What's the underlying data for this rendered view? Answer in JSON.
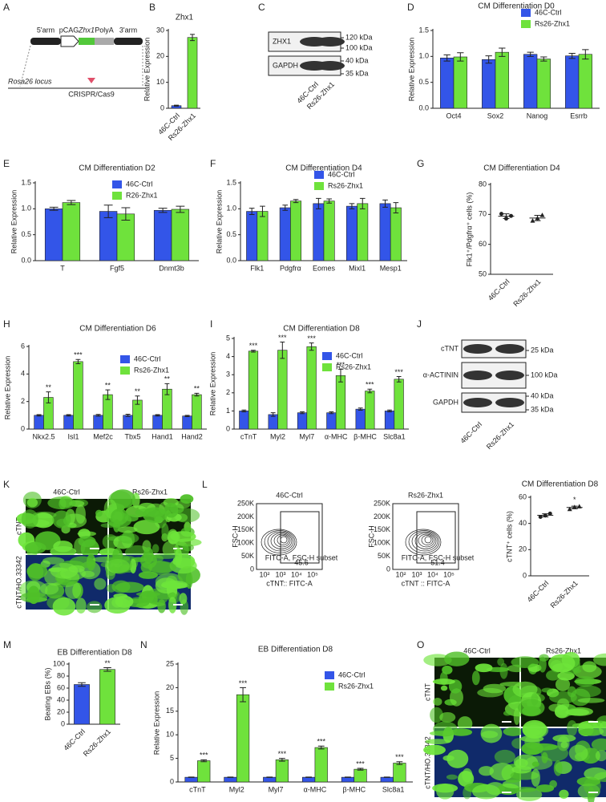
{
  "chart_data": [
    {
      "type": "bar",
      "title": "Zhx1",
      "ylabel": "Relative Expression",
      "categories": [
        "46C-Ctrl",
        "Rs26-Zhx1"
      ],
      "values": [
        1,
        27.3
      ],
      "errors": [
        0.2,
        1.2
      ],
      "colors": [
        "#3355e8",
        "#6fe23c"
      ],
      "ylim": [
        0,
        30
      ],
      "yticks": [
        0,
        10,
        20,
        30
      ]
    },
    {
      "type": "bar",
      "title": "CM Differentiation D0",
      "ylabel": "Relative Expression",
      "categories": [
        "Oct4",
        "Sox2",
        "Nanog",
        "Esrrb"
      ],
      "series": [
        {
          "name": "46C-Ctrl",
          "color": "#3355e8",
          "values": [
            0.97,
            0.94,
            1.04,
            1.01
          ],
          "errors": [
            0.06,
            0.07,
            0.04,
            0.05
          ]
        },
        {
          "name": "Rs26-Zhx1",
          "color": "#6fe23c",
          "values": [
            0.99,
            1.08,
            0.95,
            1.04
          ],
          "errors": [
            0.08,
            0.08,
            0.04,
            0.09
          ]
        }
      ],
      "ylim": [
        0,
        1.5
      ],
      "yticks": [
        {
          "value": 0,
          "label": "0.0"
        },
        0.5,
        {
          "value": 1,
          "label": "1.0"
        },
        1.5
      ],
      "legend": "top-right"
    },
    {
      "type": "bar",
      "title": "CM Differentiation D2",
      "ylabel": "Relative Expression",
      "categories": [
        "T",
        "Fgf5",
        "Dnmt3b"
      ],
      "series": [
        {
          "name": "46C-Ctrl",
          "color": "#3355e8",
          "values": [
            1.0,
            0.95,
            0.97
          ],
          "errors": [
            0.03,
            0.12,
            0.04
          ]
        },
        {
          "name": "R26-Zhx1",
          "color": "#6fe23c",
          "values": [
            1.12,
            0.9,
            0.99
          ],
          "errors": [
            0.04,
            0.12,
            0.06
          ]
        }
      ],
      "ylim": [
        0,
        1.5
      ],
      "yticks": [
        {
          "value": 0,
          "label": "0.0"
        },
        0.5,
        {
          "value": 1,
          "label": "1.0"
        },
        1.5
      ],
      "legend": "top-right"
    },
    {
      "type": "bar",
      "title": "CM Differentiation D4",
      "ylabel": "Relative Expression",
      "categories": [
        "Flk1",
        "Pdgfrα",
        "Eomes",
        "Mixl1",
        "Mesp1"
      ],
      "series": [
        {
          "name": "46C-Ctrl",
          "color": "#3355e8",
          "values": [
            0.95,
            1.02,
            1.1,
            1.05,
            1.1
          ],
          "errors": [
            0.06,
            0.05,
            0.1,
            0.05,
            0.07
          ]
        },
        {
          "name": "Rs26-Zhx1",
          "color": "#6fe23c",
          "values": [
            0.95,
            1.15,
            1.15,
            1.1,
            1.02
          ],
          "errors": [
            0.1,
            0.03,
            0.04,
            0.1,
            0.1
          ]
        }
      ],
      "ylim": [
        0,
        1.5
      ],
      "yticks": [
        {
          "value": 0,
          "label": "0.0"
        },
        0.5,
        {
          "value": 1,
          "label": "1.0"
        },
        1.5
      ],
      "legend": "top-right"
    },
    {
      "type": "dot",
      "title": "CM Differentiation D4",
      "ylabel": "Flk1⁺/Pdgfrα⁺ cells (%)",
      "categories": [
        "46C-Ctrl",
        "Rs26-Zhx1"
      ],
      "points": [
        [
          70.2,
          68.6,
          69.5
        ],
        [
          67.9,
          68.8,
          69.8
        ]
      ],
      "means": [
        69.4,
        68.8
      ],
      "errors": [
        0.8,
        0.9
      ],
      "ylim": [
        50,
        80
      ],
      "yticks": [
        50,
        60,
        70,
        80
      ]
    },
    {
      "type": "bar",
      "title": "CM Differentiation D6",
      "ylabel": "Relative Expression",
      "categories": [
        "Nkx2.5",
        "Isl1",
        "Mef2c",
        "Tbx5",
        "Hand1",
        "Hand2"
      ],
      "series": [
        {
          "name": "46C-Ctrl",
          "color": "#3355e8",
          "values": [
            1,
            1,
            1,
            1,
            1,
            0.95
          ],
          "errors": [
            0.05,
            0.05,
            0.06,
            0.08,
            0.05,
            0.05
          ]
        },
        {
          "name": "Rs26-Zhx1",
          "color": "#6fe23c",
          "values": [
            2.3,
            4.9,
            2.5,
            2.1,
            2.9,
            2.5
          ],
          "errors": [
            0.4,
            0.15,
            0.35,
            0.3,
            0.4,
            0.1
          ],
          "annotations": [
            "**",
            "***",
            "**",
            "**",
            "**",
            "**"
          ]
        }
      ],
      "ylim": [
        0,
        6
      ],
      "yticks": [
        0,
        2,
        4,
        6
      ],
      "legend": "top-right"
    },
    {
      "type": "bar",
      "title": "CM Differentiation D8",
      "ylabel": "Relative Expression",
      "categories": [
        "cTnT",
        "Myl2",
        "Myl7",
        "α-MHC",
        "β-MHC",
        "Slc8a1"
      ],
      "series": [
        {
          "name": "46C-Ctrl",
          "color": "#3355e8",
          "values": [
            1,
            0.8,
            0.9,
            0.9,
            1.1,
            1
          ],
          "errors": [
            0.05,
            0.1,
            0.05,
            0.05,
            0.06,
            0.05
          ]
        },
        {
          "name": "Rs26-Zhx1",
          "color": "#6fe23c",
          "values": [
            4.3,
            4.35,
            4.55,
            2.95,
            2.1,
            2.75
          ],
          "errors": [
            0.05,
            0.45,
            0.2,
            0.35,
            0.1,
            0.15
          ],
          "annotations": [
            "***",
            "***",
            "***",
            "***",
            "***",
            "***"
          ]
        }
      ],
      "ylim": [
        0,
        5
      ],
      "yticks": [
        0,
        1,
        2,
        3,
        4,
        5
      ],
      "legend": "top-right"
    },
    {
      "type": "dot",
      "title": "CM Differentiation D8",
      "ylabel": "cTNT⁺ cells (%)",
      "categories": [
        "46C-Ctrl",
        "Rs26-Zhx1"
      ],
      "points": [
        [
          45,
          46,
          47.5
        ],
        [
          51,
          52.5,
          53
        ]
      ],
      "means": [
        46.2,
        52.2
      ],
      "errors": [
        1.2,
        1
      ],
      "annotations": [
        null,
        "*"
      ],
      "ylim": [
        0,
        60
      ],
      "yticks": [
        0,
        20,
        40,
        60
      ]
    },
    {
      "type": "bar",
      "title": "EB Differentiation D8",
      "ylabel": "Beating EBs (%)",
      "categories": [
        "46C-Ctrl",
        "Rs26-Zhx1"
      ],
      "values": [
        66,
        91
      ],
      "errors": [
        3,
        3
      ],
      "annotations": [
        null,
        "**"
      ],
      "colors": [
        "#3355e8",
        "#6fe23c"
      ],
      "ylim": [
        0,
        100
      ],
      "yticks": [
        0,
        20,
        40,
        60,
        80,
        100
      ]
    },
    {
      "type": "bar",
      "title": "EB Differentiation D8",
      "ylabel": "Relative Expression",
      "categories": [
        "cTnT",
        "Myl2",
        "Myl7",
        "α-MHC",
        "β-MHC",
        "Slc8a1"
      ],
      "series": [
        {
          "name": "46C-Ctrl",
          "color": "#3355e8",
          "values": [
            1,
            1,
            1,
            1,
            1,
            1
          ],
          "errors": [
            0.05,
            0.05,
            0.05,
            0.05,
            0.05,
            0.05
          ]
        },
        {
          "name": "Rs26-Zhx1",
          "color": "#6fe23c",
          "values": [
            4.5,
            18.5,
            4.7,
            7.3,
            2.7,
            4.0
          ],
          "errors": [
            0.2,
            1.5,
            0.3,
            0.3,
            0.2,
            0.3
          ],
          "annotations": [
            "***",
            "***",
            "***",
            "***",
            "***",
            "***"
          ]
        }
      ],
      "ylim": [
        0,
        25
      ],
      "yticks": [
        0,
        5,
        10,
        15,
        20,
        25
      ],
      "legend": "top-right"
    }
  ],
  "letters": [
    "A",
    "B",
    "C",
    "D",
    "E",
    "F",
    "G",
    "H",
    "I",
    "J",
    "K",
    "L",
    "M",
    "N",
    "O"
  ],
  "schematic": {
    "left_arm": "5'arm",
    "promoter": "pCAG",
    "gene": "Zhx1",
    "polya": "PolyA",
    "right_arm": "3'arm",
    "locus": "Rosa26 locus",
    "tool": "CRISPR/Cas9"
  },
  "blot_c": {
    "bands": [
      "ZHX1",
      "GAPDH"
    ],
    "markers": [
      "120 kDa",
      "100 kDa",
      "40 kDa",
      "35 kDa"
    ],
    "lanes": [
      "46C-Ctrl",
      "Rs26-Zhx1"
    ]
  },
  "blot_j": {
    "bands": [
      "cTNT",
      "α-ACTININ",
      "GAPDH"
    ],
    "markers": [
      "25 kDa",
      "100 kDa",
      "40 kDa",
      "35 kDa"
    ],
    "lanes": [
      "46C-Ctrl",
      "Rs26-Zhx1"
    ]
  },
  "images_k": {
    "columns": [
      "46C-Ctrl",
      "Rs26-Zhx1"
    ],
    "rows": [
      "cTNT",
      "cTNT/HO.33342"
    ]
  },
  "images_o": {
    "columns": [
      "46C-Ctrl",
      "Rs26-Zhx1"
    ],
    "rows": [
      "cTNT",
      "cTNT/HO.33342"
    ]
  },
  "flow": {
    "ylabel": "FSC-H",
    "yticks": [
      "250K",
      "200K",
      "150K",
      "100K",
      "50K",
      "0"
    ],
    "xticks": [
      "10²",
      "10³",
      "10⁴",
      "10⁵"
    ],
    "plots": [
      {
        "title": "46C-Ctrl",
        "xlabel": "cTNT:: FITC-A",
        "gate": "FITC-A, FSC-H subset",
        "percent": "45.6"
      },
      {
        "title": "Rs26-Zhx1",
        "xlabel": "cTNT :: FITC-A",
        "gate": "FITC-A, FSC-H subset",
        "percent": "51.4"
      }
    ]
  }
}
